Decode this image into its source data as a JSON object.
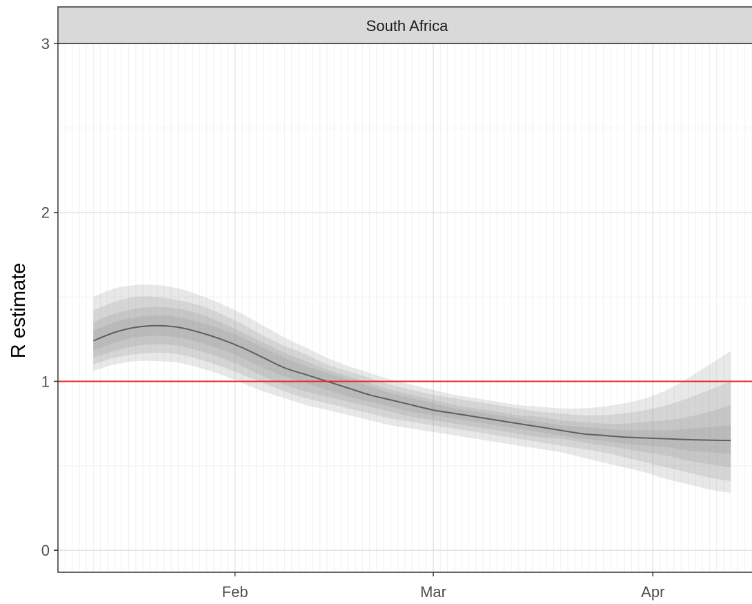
{
  "chart_data": {
    "type": "line",
    "facet_title": "South Africa",
    "ylabel": "R estimate",
    "xlabel": "",
    "ylim": [
      -0.13,
      3.0
    ],
    "y_ticks": [
      {
        "value": 0,
        "label": "0"
      },
      {
        "value": 1,
        "label": "1"
      },
      {
        "value": 2,
        "label": "2"
      },
      {
        "value": 3,
        "label": "3"
      }
    ],
    "x_ticks": [
      {
        "date": "2021-02-01",
        "label": "Feb"
      },
      {
        "date": "2021-03-01",
        "label": "Mar"
      },
      {
        "date": "2021-04-01",
        "label": "Apr"
      }
    ],
    "xlim": [
      "2021-01-07",
      "2021-04-15"
    ],
    "grid": true,
    "reference_line": {
      "y": 1,
      "color": "#e8262b"
    },
    "line_color": "#5f5f5f",
    "band_color": "#8c8c8c",
    "series": [
      {
        "x": [
          "2021-01-12",
          "2021-01-15",
          "2021-01-18",
          "2021-01-21",
          "2021-01-24",
          "2021-01-27",
          "2021-01-30",
          "2021-02-02",
          "2021-02-05",
          "2021-02-08",
          "2021-02-11",
          "2021-02-14",
          "2021-02-17",
          "2021-02-20",
          "2021-02-23",
          "2021-02-26",
          "2021-03-01",
          "2021-03-04",
          "2021-03-07",
          "2021-03-10",
          "2021-03-13",
          "2021-03-16",
          "2021-03-19",
          "2021-03-22",
          "2021-03-25",
          "2021-03-28",
          "2021-03-31",
          "2021-04-03",
          "2021-04-06",
          "2021-04-09",
          "2021-04-12"
        ],
        "median": [
          1.24,
          1.29,
          1.32,
          1.33,
          1.32,
          1.29,
          1.25,
          1.2,
          1.14,
          1.08,
          1.04,
          1.0,
          0.96,
          0.92,
          0.89,
          0.86,
          0.83,
          0.81,
          0.79,
          0.77,
          0.75,
          0.73,
          0.71,
          0.69,
          0.68,
          0.67,
          0.665,
          0.66,
          0.655,
          0.652,
          0.65
        ],
        "bands": [
          {
            "lower": [
              1.06,
              1.1,
              1.12,
              1.12,
              1.11,
              1.08,
              1.04,
              0.99,
              0.94,
              0.9,
              0.86,
              0.83,
              0.8,
              0.77,
              0.74,
              0.72,
              0.7,
              0.68,
              0.66,
              0.64,
              0.62,
              0.6,
              0.58,
              0.55,
              0.52,
              0.49,
              0.46,
              0.42,
              0.39,
              0.36,
              0.34
            ],
            "upper": [
              1.5,
              1.55,
              1.57,
              1.57,
              1.55,
              1.51,
              1.46,
              1.4,
              1.33,
              1.26,
              1.2,
              1.14,
              1.09,
              1.05,
              1.01,
              0.98,
              0.95,
              0.92,
              0.9,
              0.88,
              0.86,
              0.85,
              0.84,
              0.84,
              0.85,
              0.87,
              0.9,
              0.95,
              1.02,
              1.1,
              1.18
            ]
          },
          {
            "lower": [
              1.1,
              1.14,
              1.16,
              1.17,
              1.16,
              1.13,
              1.09,
              1.04,
              0.99,
              0.94,
              0.9,
              0.87,
              0.84,
              0.81,
              0.78,
              0.76,
              0.74,
              0.72,
              0.7,
              0.68,
              0.66,
              0.64,
              0.62,
              0.6,
              0.58,
              0.55,
              0.52,
              0.49,
              0.46,
              0.43,
              0.41
            ],
            "upper": [
              1.42,
              1.47,
              1.5,
              1.5,
              1.48,
              1.45,
              1.4,
              1.34,
              1.27,
              1.21,
              1.16,
              1.1,
              1.06,
              1.02,
              0.98,
              0.95,
              0.92,
              0.9,
              0.88,
              0.86,
              0.84,
              0.82,
              0.81,
              0.8,
              0.8,
              0.81,
              0.83,
              0.86,
              0.9,
              0.95,
              1.0
            ]
          },
          {
            "lower": [
              1.14,
              1.18,
              1.21,
              1.22,
              1.21,
              1.18,
              1.14,
              1.09,
              1.03,
              0.98,
              0.94,
              0.91,
              0.88,
              0.85,
              0.82,
              0.79,
              0.77,
              0.75,
              0.73,
              0.71,
              0.69,
              0.67,
              0.66,
              0.64,
              0.62,
              0.6,
              0.58,
              0.56,
              0.53,
              0.51,
              0.49
            ],
            "upper": [
              1.35,
              1.4,
              1.43,
              1.44,
              1.43,
              1.4,
              1.35,
              1.29,
              1.23,
              1.17,
              1.12,
              1.07,
              1.03,
              0.99,
              0.95,
              0.92,
              0.89,
              0.86,
              0.84,
              0.82,
              0.8,
              0.79,
              0.77,
              0.76,
              0.75,
              0.75,
              0.76,
              0.77,
              0.79,
              0.82,
              0.86
            ]
          },
          {
            "lower": [
              1.18,
              1.23,
              1.26,
              1.27,
              1.26,
              1.23,
              1.19,
              1.14,
              1.08,
              1.03,
              0.99,
              0.95,
              0.91,
              0.88,
              0.85,
              0.82,
              0.8,
              0.78,
              0.76,
              0.74,
              0.72,
              0.7,
              0.68,
              0.66,
              0.65,
              0.63,
              0.62,
              0.61,
              0.59,
              0.58,
              0.57
            ],
            "upper": [
              1.3,
              1.35,
              1.38,
              1.39,
              1.38,
              1.35,
              1.31,
              1.26,
              1.2,
              1.14,
              1.09,
              1.05,
              1.01,
              0.97,
              0.93,
              0.9,
              0.87,
              0.84,
              0.82,
              0.8,
              0.78,
              0.76,
              0.74,
              0.73,
              0.72,
              0.71,
              0.71,
              0.71,
              0.72,
              0.73,
              0.74
            ]
          }
        ]
      }
    ]
  }
}
